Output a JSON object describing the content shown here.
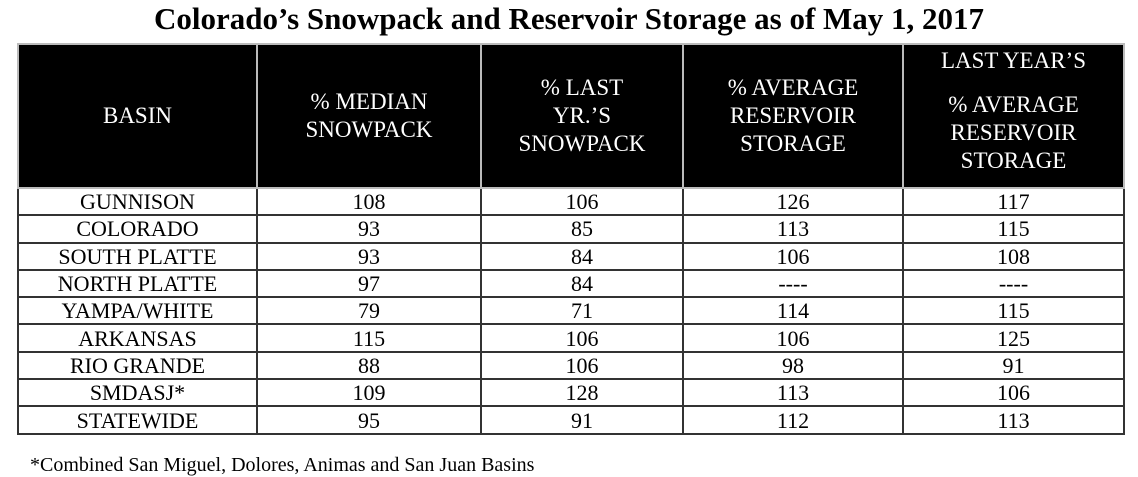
{
  "title": "Colorado’s Snowpack and Reservoir Storage as of May 1, 2017",
  "headers": [
    "BASIN",
    "% MEDIAN SNOWPACK",
    "% LAST YR.’S SNOWPACK",
    "% AVERAGE RESERVOIR STORAGE"
  ],
  "last_header": {
    "top": "LAST YEAR’S",
    "sub": "% AVERAGE RESERVOIR STORAGE"
  },
  "rows": [
    [
      "GUNNISON",
      "108",
      "106",
      "126",
      "117"
    ],
    [
      "COLORADO",
      "93",
      "85",
      "113",
      "115"
    ],
    [
      "SOUTH PLATTE",
      "93",
      "84",
      "106",
      "108"
    ],
    [
      "NORTH PLATTE",
      "97",
      "84",
      "----",
      "----"
    ],
    [
      "YAMPA/WHITE",
      "79",
      "71",
      "114",
      "115"
    ],
    [
      "ARKANSAS",
      "115",
      "106",
      "106",
      "125"
    ],
    [
      "RIO GRANDE",
      "88",
      "106",
      "98",
      "91"
    ],
    [
      "SMDASJ*",
      "109",
      "128",
      "113",
      "106"
    ],
    [
      "STATEWIDE",
      "95",
      "91",
      "112",
      "113"
    ]
  ],
  "footnote": "*Combined San Miguel, Dolores, Animas and San Juan Basins"
}
